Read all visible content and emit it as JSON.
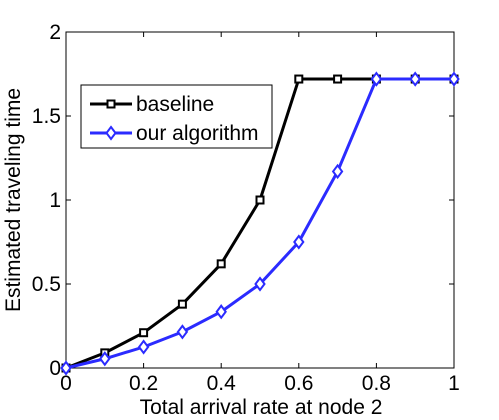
{
  "chart_data": {
    "type": "line",
    "title": "",
    "xlabel": "Total arrival rate at node 2",
    "ylabel": "Estimated traveling time",
    "xlim": [
      0,
      1
    ],
    "ylim": [
      0,
      2
    ],
    "xticks": [
      "0",
      "0.2",
      "0.4",
      "0.6",
      "0.8",
      "1"
    ],
    "yticks": [
      "0",
      "0.5",
      "1",
      "1.5",
      "2"
    ],
    "grid": false,
    "legend_position": "upper-left",
    "x": [
      0,
      0.1,
      0.2,
      0.3,
      0.4,
      0.5,
      0.6,
      0.7,
      0.8,
      0.9,
      1.0
    ],
    "series": [
      {
        "name": "baseline",
        "color": "#000000",
        "marker": "square",
        "values": [
          0.0,
          0.09,
          0.21,
          0.38,
          0.62,
          1.0,
          1.72,
          1.72,
          1.72,
          1.72,
          1.72
        ]
      },
      {
        "name": "our algorithm",
        "color": "#2b2bff",
        "marker": "diamond",
        "values": [
          0.0,
          0.055,
          0.125,
          0.215,
          0.335,
          0.5,
          0.75,
          1.17,
          1.72,
          1.72,
          1.72
        ]
      }
    ]
  }
}
